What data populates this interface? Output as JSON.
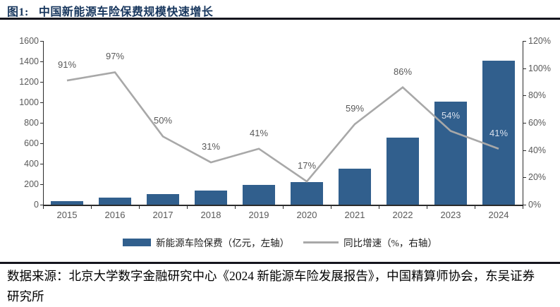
{
  "header": {
    "figure_label": "图1:",
    "title": "中国新能源车险保费规模快速增长"
  },
  "chart_data": {
    "type": "bar+line",
    "title": "中国新能源车险保费规模快速增长",
    "categories": [
      "2015",
      "2016",
      "2017",
      "2018",
      "2019",
      "2020",
      "2021",
      "2022",
      "2023",
      "2024"
    ],
    "series": [
      {
        "name": "新能源车险保费（亿元，左轴）",
        "type": "bar",
        "axis": "left",
        "color": "#315F8D",
        "values": [
          35,
          68,
          103,
          135,
          190,
          222,
          353,
          656,
          1010,
          1410
        ]
      },
      {
        "name": "同比增速（%，右轴）",
        "type": "line",
        "axis": "right",
        "color": "#A8A8A8",
        "values": [
          91,
          97,
          50,
          31,
          41,
          17,
          59,
          86,
          54,
          41
        ],
        "point_labels": [
          "91%",
          "97%",
          "50%",
          "31%",
          "41%",
          "17%",
          "59%",
          "86%",
          "54%",
          "41%"
        ],
        "light_label_indices": [
          8,
          9
        ]
      }
    ],
    "left_axis": {
      "min": 0,
      "max": 1600,
      "step": 200,
      "tick_labels": [
        "0",
        "200",
        "400",
        "600",
        "800",
        "1000",
        "1200",
        "1400",
        "1600"
      ]
    },
    "right_axis": {
      "min": 0,
      "max": 120,
      "step": 20,
      "tick_labels": [
        "0%",
        "20%",
        "40%",
        "60%",
        "80%",
        "100%",
        "120%"
      ]
    },
    "grid": false,
    "legend_position": "bottom-center"
  },
  "footer": {
    "source": "数据来源：北京大学数字金融研究中心《2024 新能源车险发展报告》，中国精算师协会，东吴证券研究所"
  },
  "colors": {
    "bar": "#315F8D",
    "line": "#A8A8A8",
    "title_text": "#17365D",
    "axis_text": "#595959",
    "rule": "#15151D",
    "light_point_label": "#D8E0EC"
  }
}
